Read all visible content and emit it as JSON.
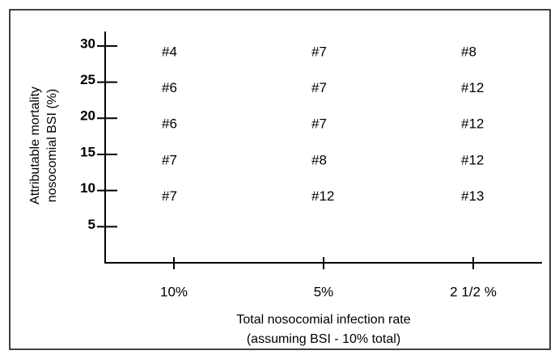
{
  "chart_data": {
    "type": "text-grid",
    "x_label": [
      "Total nosocomial infection rate",
      "(assuming BSI - 10% total)"
    ],
    "y_label": [
      "Attributable mortality",
      "nosocomial BSI (%)"
    ],
    "categories": [
      "10%",
      "5%",
      "2 1/2 %"
    ],
    "ylim": [
      0,
      32
    ],
    "yticks": [
      5,
      10,
      15,
      20,
      25,
      30
    ],
    "rows": [
      {
        "y": 30,
        "labels": [
          "#4",
          "#7",
          "#8"
        ]
      },
      {
        "y": 25,
        "labels": [
          "#6",
          "#7",
          "#12"
        ]
      },
      {
        "y": 20,
        "labels": [
          "#6",
          "#7",
          "#12"
        ]
      },
      {
        "y": 15,
        "labels": [
          "#7",
          "#8",
          "#12"
        ]
      },
      {
        "y": 10,
        "labels": [
          "#7",
          "#12",
          "#13"
        ]
      }
    ],
    "color": "#000000"
  }
}
